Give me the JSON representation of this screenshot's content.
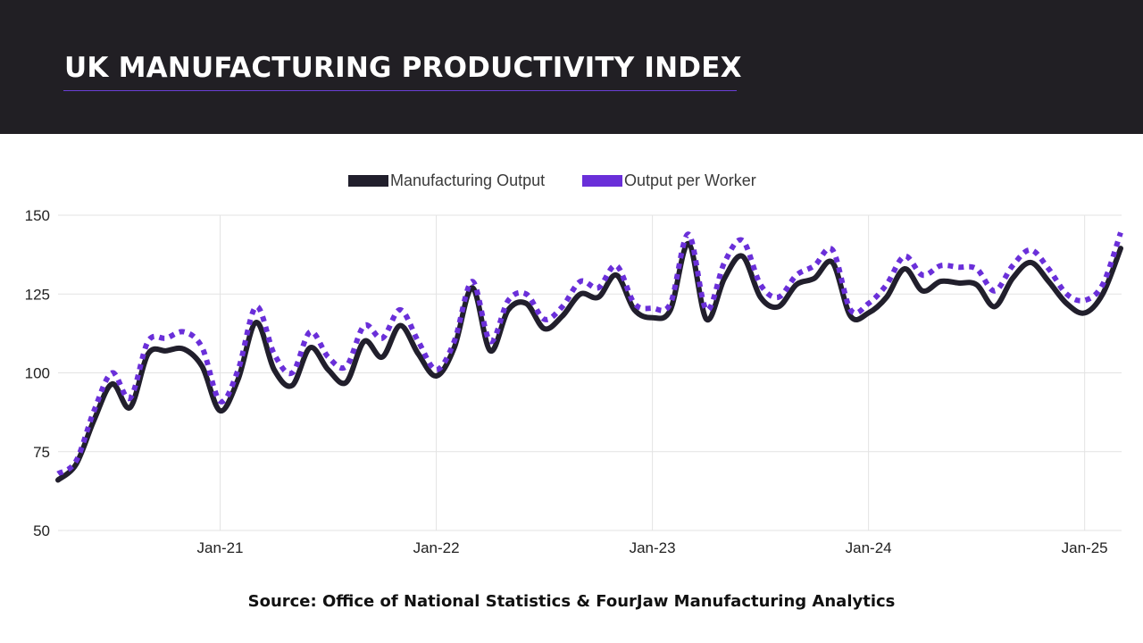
{
  "header": {
    "title": "UK MANUFACTURING PRODUCTIVITY INDEX",
    "background": "#211f24",
    "accent": "#6a3fd6"
  },
  "footer": {
    "source": "Source: Office of National Statistics & FourJaw Manufacturing Analytics"
  },
  "chart_data": {
    "type": "line",
    "title": "UK MANUFACTURING PRODUCTIVITY INDEX",
    "xlabel": "",
    "ylabel": "",
    "ylim": [
      50,
      150
    ],
    "yticks": [
      50,
      75,
      100,
      125,
      150
    ],
    "xticks": [
      "Jan-21",
      "Jan-22",
      "Jan-23",
      "Jan-24",
      "Jan-25"
    ],
    "grid": true,
    "legend_position": "top-center",
    "x": [
      "Apr-20",
      "May-20",
      "Jun-20",
      "Jul-20",
      "Aug-20",
      "Sep-20",
      "Oct-20",
      "Nov-20",
      "Dec-20",
      "Jan-21",
      "Feb-21",
      "Mar-21",
      "Apr-21",
      "May-21",
      "Jun-21",
      "Jul-21",
      "Aug-21",
      "Sep-21",
      "Oct-21",
      "Nov-21",
      "Dec-21",
      "Jan-22",
      "Feb-22",
      "Mar-22",
      "Apr-22",
      "May-22",
      "Jun-22",
      "Jul-22",
      "Aug-22",
      "Sep-22",
      "Oct-22",
      "Nov-22",
      "Dec-22",
      "Jan-23",
      "Feb-23",
      "Mar-23",
      "Apr-23",
      "May-23",
      "Jun-23",
      "Jul-23",
      "Aug-23",
      "Sep-23",
      "Oct-23",
      "Nov-23",
      "Dec-23",
      "Jan-24",
      "Feb-24",
      "Mar-24",
      "Apr-24",
      "May-24",
      "Jun-24",
      "Jul-24",
      "Aug-24",
      "Sep-24",
      "Oct-24",
      "Nov-24",
      "Dec-24",
      "Jan-25",
      "Feb-25",
      "Mar-25"
    ],
    "series": [
      {
        "name": "Manufacturing Output",
        "color": "#211f2c",
        "style": "solid",
        "values": [
          66,
          71,
          85,
          96.5,
          89,
          106,
          107,
          107.5,
          102,
          88,
          98,
          116,
          101,
          96,
          108,
          101,
          97,
          110,
          105,
          115,
          106,
          99,
          108,
          127,
          107,
          120,
          122,
          114,
          118,
          125,
          124,
          131,
          120,
          117.5,
          120,
          141,
          117,
          130,
          137,
          124,
          121,
          128,
          130,
          135,
          118,
          119,
          124,
          133,
          126,
          129,
          128.5,
          128,
          121,
          130,
          135,
          129,
          122,
          119,
          125,
          139.5
        ]
      },
      {
        "name": "Output per Worker",
        "color": "#6a2fd9",
        "style": "dotted",
        "values": [
          68,
          72,
          88,
          100,
          92,
          110,
          111,
          113,
          108,
          91,
          101,
          121,
          106,
          100,
          113,
          105,
          102,
          115,
          111,
          120,
          110,
          101,
          110,
          129,
          110,
          123,
          125,
          117,
          121,
          129,
          127,
          134,
          122,
          120.5,
          122,
          144,
          120,
          135,
          142,
          128,
          124,
          131,
          134,
          139,
          120,
          122,
          128,
          137,
          131,
          134,
          133.5,
          133,
          126,
          134,
          139,
          133,
          125,
          123,
          128,
          144.5
        ]
      }
    ]
  }
}
